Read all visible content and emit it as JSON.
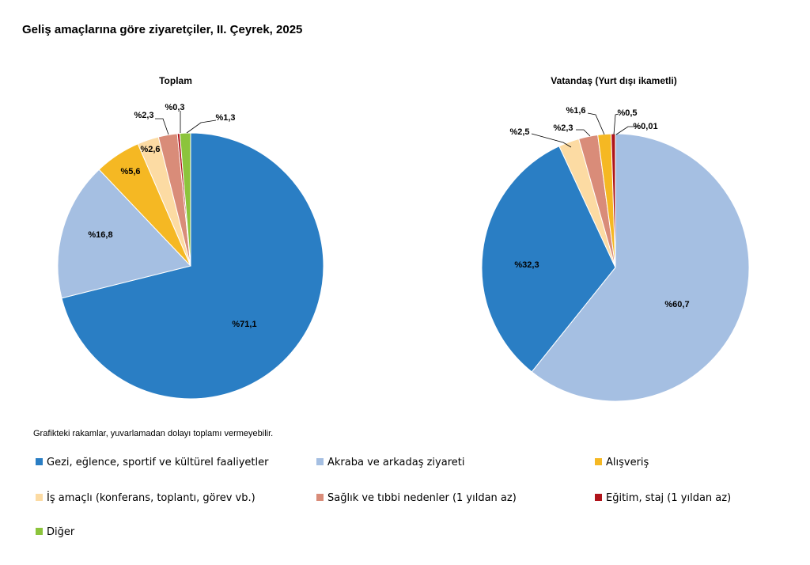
{
  "title": "Geliş amaçlarına göre ziyaretçiler, II. Çeyrek, 2025",
  "note": "Grafikteki rakamlar, yuvarlamadan dolayı toplamı vermeyebilir.",
  "categories": [
    {
      "key": "gezi",
      "name": "Gezi, eğlence, sportif ve kültürel faaliyetler",
      "color": "#2a7ec4"
    },
    {
      "key": "akraba",
      "name": "Akraba ve arkadaş ziyareti",
      "color": "#a5bfe2"
    },
    {
      "key": "alisveris",
      "name": "Alışveriş",
      "color": "#f5b823"
    },
    {
      "key": "is",
      "name": "İş amaçlı (konferans, toplantı, görev vb.)",
      "color": "#fcdba3"
    },
    {
      "key": "saglik",
      "name": "Sağlık ve tıbbi nedenler (1 yıldan az)",
      "color": "#d98c79"
    },
    {
      "key": "egitim",
      "name": "Eğitim, staj (1 yıldan az)",
      "color": "#b0141b"
    },
    {
      "key": "diger",
      "name": "Diğer",
      "color": "#8cc43c"
    }
  ],
  "chart_data": [
    {
      "type": "pie",
      "title": "Toplam",
      "slices": [
        {
          "category": "gezi",
          "value": 71.1,
          "label": "%71,1"
        },
        {
          "category": "akraba",
          "value": 16.8,
          "label": "%16,8"
        },
        {
          "category": "alisveris",
          "value": 5.6,
          "label": "%5,6"
        },
        {
          "category": "is",
          "value": 2.6,
          "label": "%2,6"
        },
        {
          "category": "saglik",
          "value": 2.3,
          "label": "%2,3"
        },
        {
          "category": "egitim",
          "value": 0.3,
          "label": "%0,3"
        },
        {
          "category": "diger",
          "value": 1.3,
          "label": "%1,3"
        }
      ]
    },
    {
      "type": "pie",
      "title": "Vatandaş (Yurt dışı ikametli)",
      "slices": [
        {
          "category": "akraba",
          "value": 60.7,
          "label": "%60,7"
        },
        {
          "category": "gezi",
          "value": 32.3,
          "label": "%32,3"
        },
        {
          "category": "is",
          "value": 2.5,
          "label": "%2,5"
        },
        {
          "category": "saglik",
          "value": 2.3,
          "label": "%2,3"
        },
        {
          "category": "alisveris",
          "value": 1.6,
          "label": "%1,6"
        },
        {
          "category": "egitim",
          "value": 0.5,
          "label": "%0,5"
        },
        {
          "category": "diger",
          "value": 0.01,
          "label": "%0,01"
        }
      ]
    }
  ]
}
